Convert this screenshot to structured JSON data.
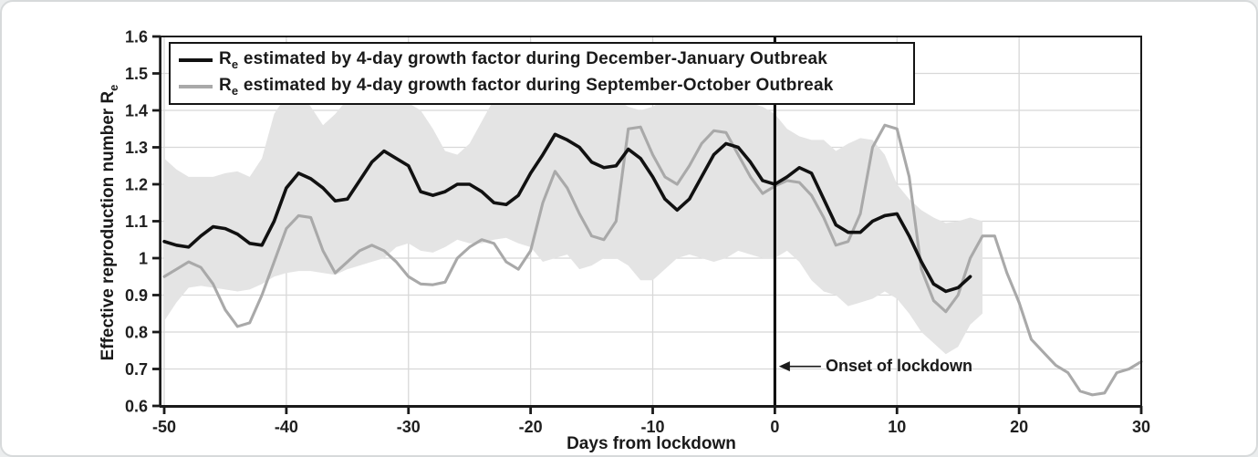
{
  "figure": {
    "legend": {
      "items": [
        {
          "symbol": "R",
          "sub": "e",
          "rest": " estimated by 4-day growth factor during December-January Outbreak",
          "color": "#111111"
        },
        {
          "symbol": "R",
          "sub": "e",
          "rest": " estimated by 4-day growth factor during September-October Outbreak",
          "color": "#a9a9a9"
        }
      ]
    },
    "y_axis_label": {
      "text": "Effective reproduction number R",
      "sub": "e"
    },
    "x_axis_label": "Days from lockdown",
    "annotation_label": "Onset of lockdown"
  },
  "chart_data": {
    "type": "line",
    "title": "",
    "xlabel": "Days from lockdown",
    "ylabel": "Effective reproduction number Re",
    "xlim": [
      -50.3,
      30
    ],
    "ylim": [
      0.6,
      1.6
    ],
    "grid": true,
    "legend_position": "top-left",
    "x_ticks": [
      -50,
      -40,
      -30,
      -20,
      -10,
      0,
      10,
      20,
      30
    ],
    "x_tick_labels": [
      "-50",
      "-40",
      "-30",
      "-20",
      "-10",
      "0",
      "10",
      "20",
      "30"
    ],
    "y_ticks": [
      0.6,
      0.7,
      0.8,
      0.9,
      1.0,
      1.1,
      1.2,
      1.3,
      1.4,
      1.5,
      1.6
    ],
    "y_tick_labels": [
      "0.6",
      "0.7",
      "0.8",
      "0.9",
      "1",
      "1.1",
      "1.2",
      "1.3",
      "1.4",
      "1.5",
      "1.6"
    ],
    "vline_x": 0,
    "annotation": {
      "text": "Onset of lockdown",
      "y_value": 0.707,
      "points_to_x": 0
    },
    "colors": {
      "series_dec_jan": "#111111",
      "series_sep_oct": "#a9a9a9",
      "band": "#e4e4e4",
      "grid": "#d8d8d8",
      "axis": "#1a1a1a",
      "vline": "#000000"
    },
    "series": [
      {
        "name": "Re estimated by 4-day growth factor during December-January Outbreak",
        "color": "#111111",
        "line_width": 3.6,
        "x_start": -50,
        "x_step": 1,
        "values": [
          1.045,
          1.035,
          1.03,
          1.06,
          1.085,
          1.08,
          1.065,
          1.04,
          1.035,
          1.1,
          1.19,
          1.23,
          1.215,
          1.19,
          1.155,
          1.16,
          1.21,
          1.26,
          1.29,
          1.27,
          1.25,
          1.18,
          1.17,
          1.18,
          1.2,
          1.2,
          1.18,
          1.15,
          1.145,
          1.17,
          1.23,
          1.28,
          1.335,
          1.32,
          1.3,
          1.26,
          1.245,
          1.25,
          1.295,
          1.27,
          1.22,
          1.16,
          1.13,
          1.16,
          1.22,
          1.28,
          1.31,
          1.3,
          1.26,
          1.21,
          1.2,
          1.22,
          1.245,
          1.23,
          1.16,
          1.09,
          1.07,
          1.07,
          1.1,
          1.115,
          1.12,
          1.06,
          0.99,
          0.93,
          0.91,
          0.92,
          0.95
        ]
      },
      {
        "name": "Re estimated by 4-day growth factor during September-October Outbreak",
        "color": "#a9a9a9",
        "line_width": 3.1,
        "x_start": -50,
        "x_step": 1,
        "values": [
          0.95,
          0.97,
          0.99,
          0.975,
          0.93,
          0.86,
          0.815,
          0.825,
          0.9,
          0.99,
          1.08,
          1.115,
          1.11,
          1.02,
          0.96,
          0.99,
          1.02,
          1.035,
          1.02,
          0.99,
          0.95,
          0.93,
          0.928,
          0.935,
          1.0,
          1.03,
          1.05,
          1.04,
          0.99,
          0.97,
          1.02,
          1.15,
          1.235,
          1.19,
          1.12,
          1.06,
          1.05,
          1.1,
          1.35,
          1.355,
          1.28,
          1.22,
          1.2,
          1.25,
          1.31,
          1.345,
          1.34,
          1.28,
          1.22,
          1.175,
          1.195,
          1.21,
          1.205,
          1.17,
          1.11,
          1.035,
          1.045,
          1.12,
          1.3,
          1.36,
          1.35,
          1.22,
          0.97,
          0.885,
          0.855,
          0.9,
          1.0,
          1.06,
          1.06,
          0.96,
          0.88,
          0.78,
          0.745,
          0.71,
          0.69,
          0.64,
          0.63,
          0.635,
          0.69,
          0.7,
          0.72
        ]
      }
    ],
    "band": {
      "name": "confidence-band",
      "color": "#e4e4e4",
      "x_start": -50,
      "x_step": 1,
      "upper": [
        1.27,
        1.24,
        1.22,
        1.22,
        1.22,
        1.23,
        1.235,
        1.22,
        1.27,
        1.39,
        1.44,
        1.46,
        1.41,
        1.36,
        1.39,
        1.43,
        1.46,
        1.46,
        1.44,
        1.43,
        1.42,
        1.4,
        1.35,
        1.29,
        1.28,
        1.31,
        1.37,
        1.43,
        1.44,
        1.43,
        1.45,
        1.47,
        1.47,
        1.45,
        1.43,
        1.43,
        1.44,
        1.43,
        1.41,
        1.4,
        1.41,
        1.43,
        1.42,
        1.43,
        1.45,
        1.45,
        1.44,
        1.43,
        1.42,
        1.41,
        1.39,
        1.35,
        1.33,
        1.32,
        1.32,
        1.29,
        1.31,
        1.325,
        1.32,
        1.28,
        1.2,
        1.16,
        1.13,
        1.11,
        1.095,
        1.1,
        1.11,
        1.1
      ],
      "lower": [
        0.83,
        0.88,
        0.92,
        0.925,
        0.92,
        0.915,
        0.91,
        0.915,
        0.93,
        0.95,
        0.96,
        0.965,
        0.965,
        0.96,
        0.955,
        0.97,
        0.98,
        0.99,
        1.0,
        1.03,
        1.04,
        1.02,
        1.015,
        1.03,
        1.05,
        1.04,
        1.04,
        1.05,
        1.055,
        1.04,
        1.03,
        0.99,
        1.0,
        1.01,
        0.97,
        0.98,
        1.0,
        1.0,
        0.98,
        0.94,
        0.94,
        0.97,
        1.0,
        1.01,
        1.0,
        0.99,
        1.0,
        1.02,
        1.01,
        1.0,
        1.0,
        1.02,
        0.99,
        0.94,
        0.91,
        0.9,
        0.87,
        0.88,
        0.89,
        0.91,
        0.89,
        0.85,
        0.8,
        0.77,
        0.74,
        0.76,
        0.82,
        0.85
      ]
    }
  }
}
